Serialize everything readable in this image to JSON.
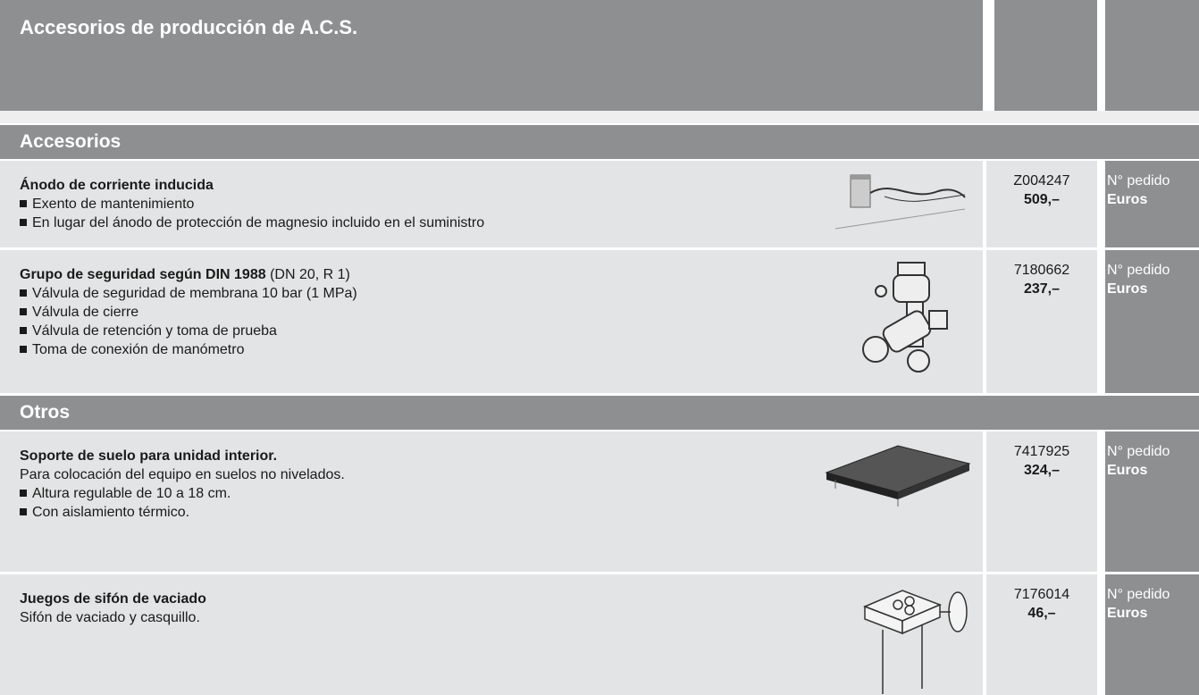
{
  "header": {
    "title": "Accesorios de producción de A.C.S."
  },
  "sections": [
    {
      "title": "Accesorios",
      "items": [
        {
          "title": "Ánodo de corriente inducida",
          "lines": [],
          "bullets": [
            "Exento de mantenimiento",
            "En lugar del ánodo de protección de magnesio incluido en el suministro"
          ],
          "code": "Z004247",
          "price": "509,–",
          "code_label": "N° pedido",
          "price_label": "Euros"
        },
        {
          "title": "Grupo de seguridad según DIN 1988",
          "title_suffix": "(DN 20, R 1)",
          "lines": [],
          "bullets": [
            "Válvula de seguridad de membrana 10 bar (1 MPa)",
            "Válvula de cierre",
            "Válvula de retención y toma de prueba",
            "Toma de conexión de manómetro"
          ],
          "code": "7180662",
          "price": "237,–",
          "code_label": "N° pedido",
          "price_label": "Euros"
        }
      ]
    },
    {
      "title": "Otros",
      "items": [
        {
          "title": "Soporte de suelo para unidad interior.",
          "lines": [
            "Para colocación del equipo en suelos no nivelados."
          ],
          "bullets": [
            "Altura regulable de 10 a 18 cm.",
            "Con aislamiento térmico."
          ],
          "code": "7417925",
          "price": "324,–",
          "code_label": "N° pedido",
          "price_label": "Euros"
        },
        {
          "title": "Juegos de sifón de vaciado",
          "lines": [
            "Sifón de vaciado y casquillo."
          ],
          "bullets": [],
          "code": "7176014",
          "price": "46,–",
          "code_label": "N° pedido",
          "price_label": "Euros"
        }
      ]
    }
  ]
}
